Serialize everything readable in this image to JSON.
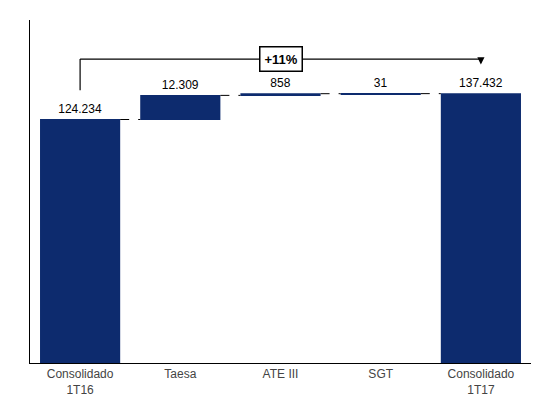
{
  "chart_data": {
    "type": "waterfall",
    "categories": [
      "Consolidado\n1T16",
      "Taesa",
      "ATE III",
      "SGT",
      "Consolidado\n1T17"
    ],
    "values": [
      124.234,
      12.309,
      0.858,
      0.031,
      137.432
    ],
    "value_labels": [
      "124.234",
      "12.309",
      "858",
      "31",
      "137.432"
    ],
    "color": "#0d2b6e",
    "ylim": [
      0,
      175
    ],
    "yticks": [],
    "grid": false,
    "data_labels": true,
    "tick_labels": "x",
    "annotations": [
      "+11%"
    ]
  }
}
